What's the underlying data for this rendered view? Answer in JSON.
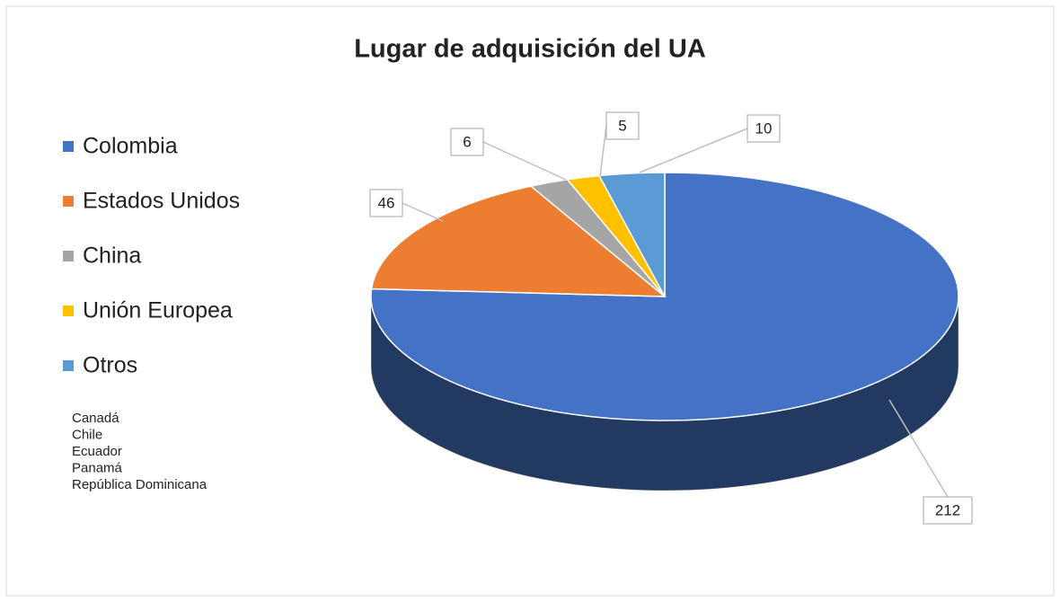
{
  "chart_data": {
    "type": "pie3d",
    "title": "Lugar de adquisición del UA",
    "categories": [
      "Colombia",
      "Estados Unidos",
      "China",
      "Unión Europea",
      "Otros"
    ],
    "values": [
      212,
      46,
      6,
      5,
      10
    ],
    "colors": [
      "#4472c4",
      "#ed7d31",
      "#a5a5a5",
      "#ffc000",
      "#5b9bd5"
    ],
    "annotations": [
      "Canadá",
      "Chile",
      "Ecuador",
      "Panamá",
      "República Dominicana"
    ],
    "legend": "left"
  }
}
